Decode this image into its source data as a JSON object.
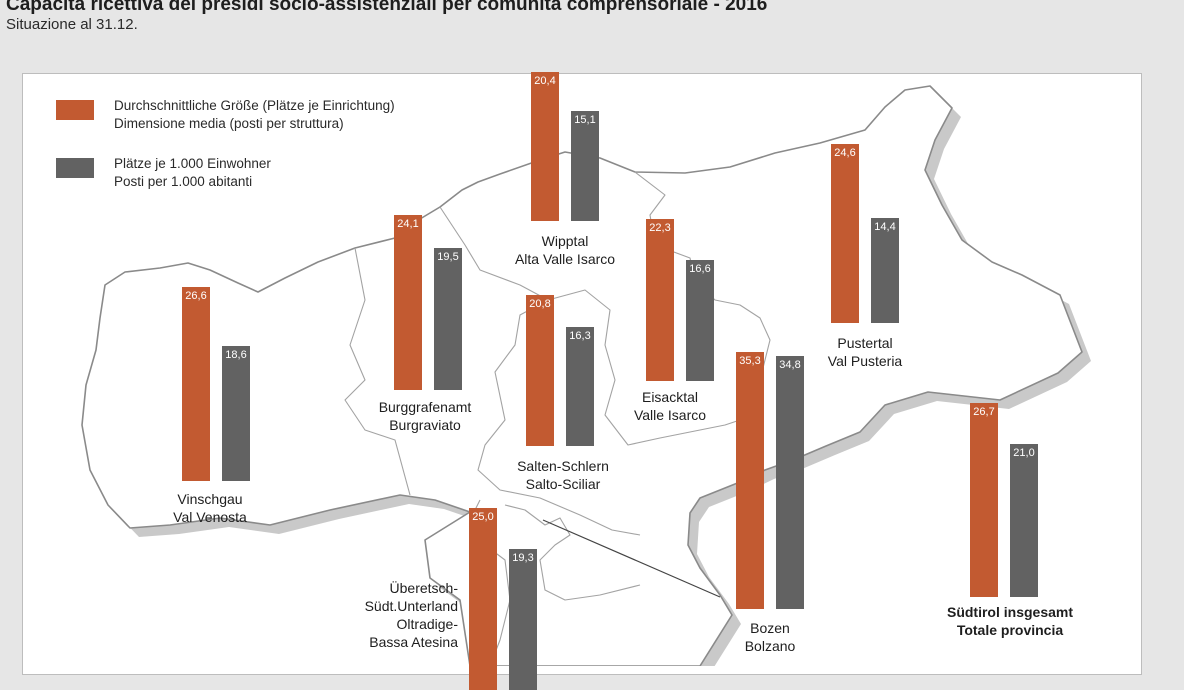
{
  "title": "Capacità ricettiva dei presidi socio-assistenziali per comunità comprensoriale - 2016",
  "subtitle": "Situazione al 31.12.",
  "colors": {
    "average_size": "#c25a31",
    "places_per_1000": "#626262"
  },
  "legend": {
    "average_size_de": "Durchschnittliche Größe (Plätze je Einrichtung)",
    "average_size_it": "Dimensione media (posti per struttura)",
    "places_de": "Plätze je 1.000 Einwohner",
    "places_it": "Posti per 1.000 abitanti"
  },
  "chart_data": {
    "type": "bar",
    "categories": [
      "Vinschgau / Val Venosta",
      "Burggrafenamt / Burgraviato",
      "Wipptal / Alta Valle Isarco",
      "Salten-Schlern / Salto-Sciliar",
      "Eisacktal / Valle Isarco",
      "Pustertal / Val Pusteria",
      "Bozen / Bolzano",
      "Überetsch-Südt.Unterland / Oltradige-Bassa Atesina",
      "Südtirol insgesamt / Totale provincia"
    ],
    "series": [
      {
        "name": "Durchschnittliche Größe (Plätze je Einrichtung) / Dimensione media (posti per struttura)",
        "values": [
          26.6,
          24.1,
          20.4,
          20.8,
          22.3,
          24.6,
          35.3,
          25.0,
          26.7
        ],
        "labels": [
          "26,6",
          "24,1",
          "20,4",
          "20,8",
          "22,3",
          "24,6",
          "35,3",
          "25,0",
          "26,7"
        ]
      },
      {
        "name": "Plätze je 1.000 Einwohner / Posti per 1.000 abitanti",
        "values": [
          18.6,
          19.5,
          15.1,
          16.3,
          16.6,
          14.4,
          34.8,
          19.3,
          21.0
        ],
        "labels": [
          "18,6",
          "19,5",
          "15,1",
          "16,3",
          "16,6",
          "14,4",
          "34,8",
          "19,3",
          "21,0"
        ]
      }
    ]
  },
  "regions": [
    {
      "line1": "Vinschgau",
      "line2": "Val Venosta"
    },
    {
      "line1": "Burggrafenamt",
      "line2": "Burgraviato"
    },
    {
      "line1": "Wipptal",
      "line2": "Alta Valle Isarco"
    },
    {
      "line1": "Salten-Schlern",
      "line2": "Salto-Sciliar"
    },
    {
      "line1": "Eisacktal",
      "line2": "Valle Isarco"
    },
    {
      "line1": "Pustertal",
      "line2": "Val Pusteria"
    },
    {
      "line1": "Bozen",
      "line2": "Bolzano"
    },
    {
      "line1": "Überetsch-",
      "line2": "Südt.Unterland",
      "line3": "Oltradige-",
      "line4": "Bassa Atesina"
    },
    {
      "line1": "Südtirol insgesamt",
      "line2": "Totale provincia"
    }
  ]
}
